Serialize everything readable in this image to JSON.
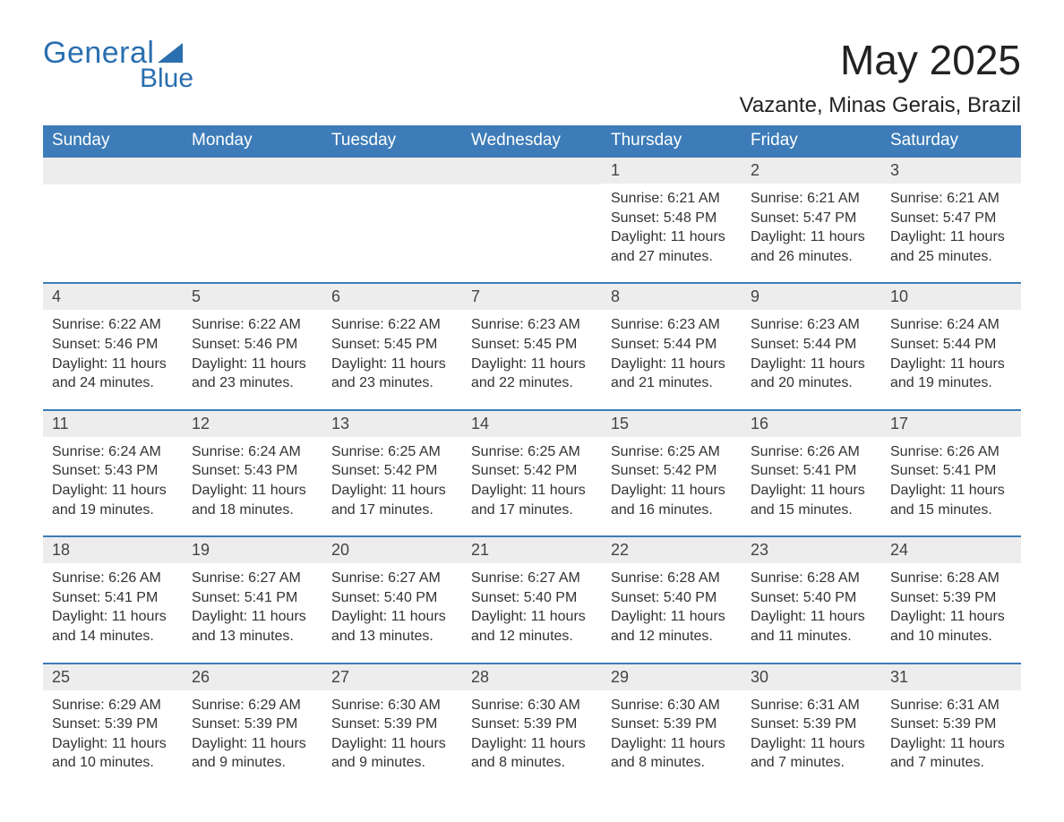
{
  "logo": {
    "text1": "General",
    "text2": "Blue",
    "accent_color": "#2a6fb0"
  },
  "title": "May 2025",
  "subtitle": "Vazante, Minas Gerais, Brazil",
  "colors": {
    "header_bg": "#3d7cb8",
    "header_text": "#ffffff",
    "daynum_bg": "#ededed",
    "daynum_text": "#444444",
    "body_text": "#333333",
    "rule": "#3d7cb8"
  },
  "weekdays": [
    "Sunday",
    "Monday",
    "Tuesday",
    "Wednesday",
    "Thursday",
    "Friday",
    "Saturday"
  ],
  "weeks": [
    [
      null,
      null,
      null,
      null,
      {
        "n": "1",
        "sunrise": "Sunrise: 6:21 AM",
        "sunset": "Sunset: 5:48 PM",
        "day1": "Daylight: 11 hours",
        "day2": "and 27 minutes."
      },
      {
        "n": "2",
        "sunrise": "Sunrise: 6:21 AM",
        "sunset": "Sunset: 5:47 PM",
        "day1": "Daylight: 11 hours",
        "day2": "and 26 minutes."
      },
      {
        "n": "3",
        "sunrise": "Sunrise: 6:21 AM",
        "sunset": "Sunset: 5:47 PM",
        "day1": "Daylight: 11 hours",
        "day2": "and 25 minutes."
      }
    ],
    [
      {
        "n": "4",
        "sunrise": "Sunrise: 6:22 AM",
        "sunset": "Sunset: 5:46 PM",
        "day1": "Daylight: 11 hours",
        "day2": "and 24 minutes."
      },
      {
        "n": "5",
        "sunrise": "Sunrise: 6:22 AM",
        "sunset": "Sunset: 5:46 PM",
        "day1": "Daylight: 11 hours",
        "day2": "and 23 minutes."
      },
      {
        "n": "6",
        "sunrise": "Sunrise: 6:22 AM",
        "sunset": "Sunset: 5:45 PM",
        "day1": "Daylight: 11 hours",
        "day2": "and 23 minutes."
      },
      {
        "n": "7",
        "sunrise": "Sunrise: 6:23 AM",
        "sunset": "Sunset: 5:45 PM",
        "day1": "Daylight: 11 hours",
        "day2": "and 22 minutes."
      },
      {
        "n": "8",
        "sunrise": "Sunrise: 6:23 AM",
        "sunset": "Sunset: 5:44 PM",
        "day1": "Daylight: 11 hours",
        "day2": "and 21 minutes."
      },
      {
        "n": "9",
        "sunrise": "Sunrise: 6:23 AM",
        "sunset": "Sunset: 5:44 PM",
        "day1": "Daylight: 11 hours",
        "day2": "and 20 minutes."
      },
      {
        "n": "10",
        "sunrise": "Sunrise: 6:24 AM",
        "sunset": "Sunset: 5:44 PM",
        "day1": "Daylight: 11 hours",
        "day2": "and 19 minutes."
      }
    ],
    [
      {
        "n": "11",
        "sunrise": "Sunrise: 6:24 AM",
        "sunset": "Sunset: 5:43 PM",
        "day1": "Daylight: 11 hours",
        "day2": "and 19 minutes."
      },
      {
        "n": "12",
        "sunrise": "Sunrise: 6:24 AM",
        "sunset": "Sunset: 5:43 PM",
        "day1": "Daylight: 11 hours",
        "day2": "and 18 minutes."
      },
      {
        "n": "13",
        "sunrise": "Sunrise: 6:25 AM",
        "sunset": "Sunset: 5:42 PM",
        "day1": "Daylight: 11 hours",
        "day2": "and 17 minutes."
      },
      {
        "n": "14",
        "sunrise": "Sunrise: 6:25 AM",
        "sunset": "Sunset: 5:42 PM",
        "day1": "Daylight: 11 hours",
        "day2": "and 17 minutes."
      },
      {
        "n": "15",
        "sunrise": "Sunrise: 6:25 AM",
        "sunset": "Sunset: 5:42 PM",
        "day1": "Daylight: 11 hours",
        "day2": "and 16 minutes."
      },
      {
        "n": "16",
        "sunrise": "Sunrise: 6:26 AM",
        "sunset": "Sunset: 5:41 PM",
        "day1": "Daylight: 11 hours",
        "day2": "and 15 minutes."
      },
      {
        "n": "17",
        "sunrise": "Sunrise: 6:26 AM",
        "sunset": "Sunset: 5:41 PM",
        "day1": "Daylight: 11 hours",
        "day2": "and 15 minutes."
      }
    ],
    [
      {
        "n": "18",
        "sunrise": "Sunrise: 6:26 AM",
        "sunset": "Sunset: 5:41 PM",
        "day1": "Daylight: 11 hours",
        "day2": "and 14 minutes."
      },
      {
        "n": "19",
        "sunrise": "Sunrise: 6:27 AM",
        "sunset": "Sunset: 5:41 PM",
        "day1": "Daylight: 11 hours",
        "day2": "and 13 minutes."
      },
      {
        "n": "20",
        "sunrise": "Sunrise: 6:27 AM",
        "sunset": "Sunset: 5:40 PM",
        "day1": "Daylight: 11 hours",
        "day2": "and 13 minutes."
      },
      {
        "n": "21",
        "sunrise": "Sunrise: 6:27 AM",
        "sunset": "Sunset: 5:40 PM",
        "day1": "Daylight: 11 hours",
        "day2": "and 12 minutes."
      },
      {
        "n": "22",
        "sunrise": "Sunrise: 6:28 AM",
        "sunset": "Sunset: 5:40 PM",
        "day1": "Daylight: 11 hours",
        "day2": "and 12 minutes."
      },
      {
        "n": "23",
        "sunrise": "Sunrise: 6:28 AM",
        "sunset": "Sunset: 5:40 PM",
        "day1": "Daylight: 11 hours",
        "day2": "and 11 minutes."
      },
      {
        "n": "24",
        "sunrise": "Sunrise: 6:28 AM",
        "sunset": "Sunset: 5:39 PM",
        "day1": "Daylight: 11 hours",
        "day2": "and 10 minutes."
      }
    ],
    [
      {
        "n": "25",
        "sunrise": "Sunrise: 6:29 AM",
        "sunset": "Sunset: 5:39 PM",
        "day1": "Daylight: 11 hours",
        "day2": "and 10 minutes."
      },
      {
        "n": "26",
        "sunrise": "Sunrise: 6:29 AM",
        "sunset": "Sunset: 5:39 PM",
        "day1": "Daylight: 11 hours",
        "day2": "and 9 minutes."
      },
      {
        "n": "27",
        "sunrise": "Sunrise: 6:30 AM",
        "sunset": "Sunset: 5:39 PM",
        "day1": "Daylight: 11 hours",
        "day2": "and 9 minutes."
      },
      {
        "n": "28",
        "sunrise": "Sunrise: 6:30 AM",
        "sunset": "Sunset: 5:39 PM",
        "day1": "Daylight: 11 hours",
        "day2": "and 8 minutes."
      },
      {
        "n": "29",
        "sunrise": "Sunrise: 6:30 AM",
        "sunset": "Sunset: 5:39 PM",
        "day1": "Daylight: 11 hours",
        "day2": "and 8 minutes."
      },
      {
        "n": "30",
        "sunrise": "Sunrise: 6:31 AM",
        "sunset": "Sunset: 5:39 PM",
        "day1": "Daylight: 11 hours",
        "day2": "and 7 minutes."
      },
      {
        "n": "31",
        "sunrise": "Sunrise: 6:31 AM",
        "sunset": "Sunset: 5:39 PM",
        "day1": "Daylight: 11 hours",
        "day2": "and 7 minutes."
      }
    ]
  ]
}
